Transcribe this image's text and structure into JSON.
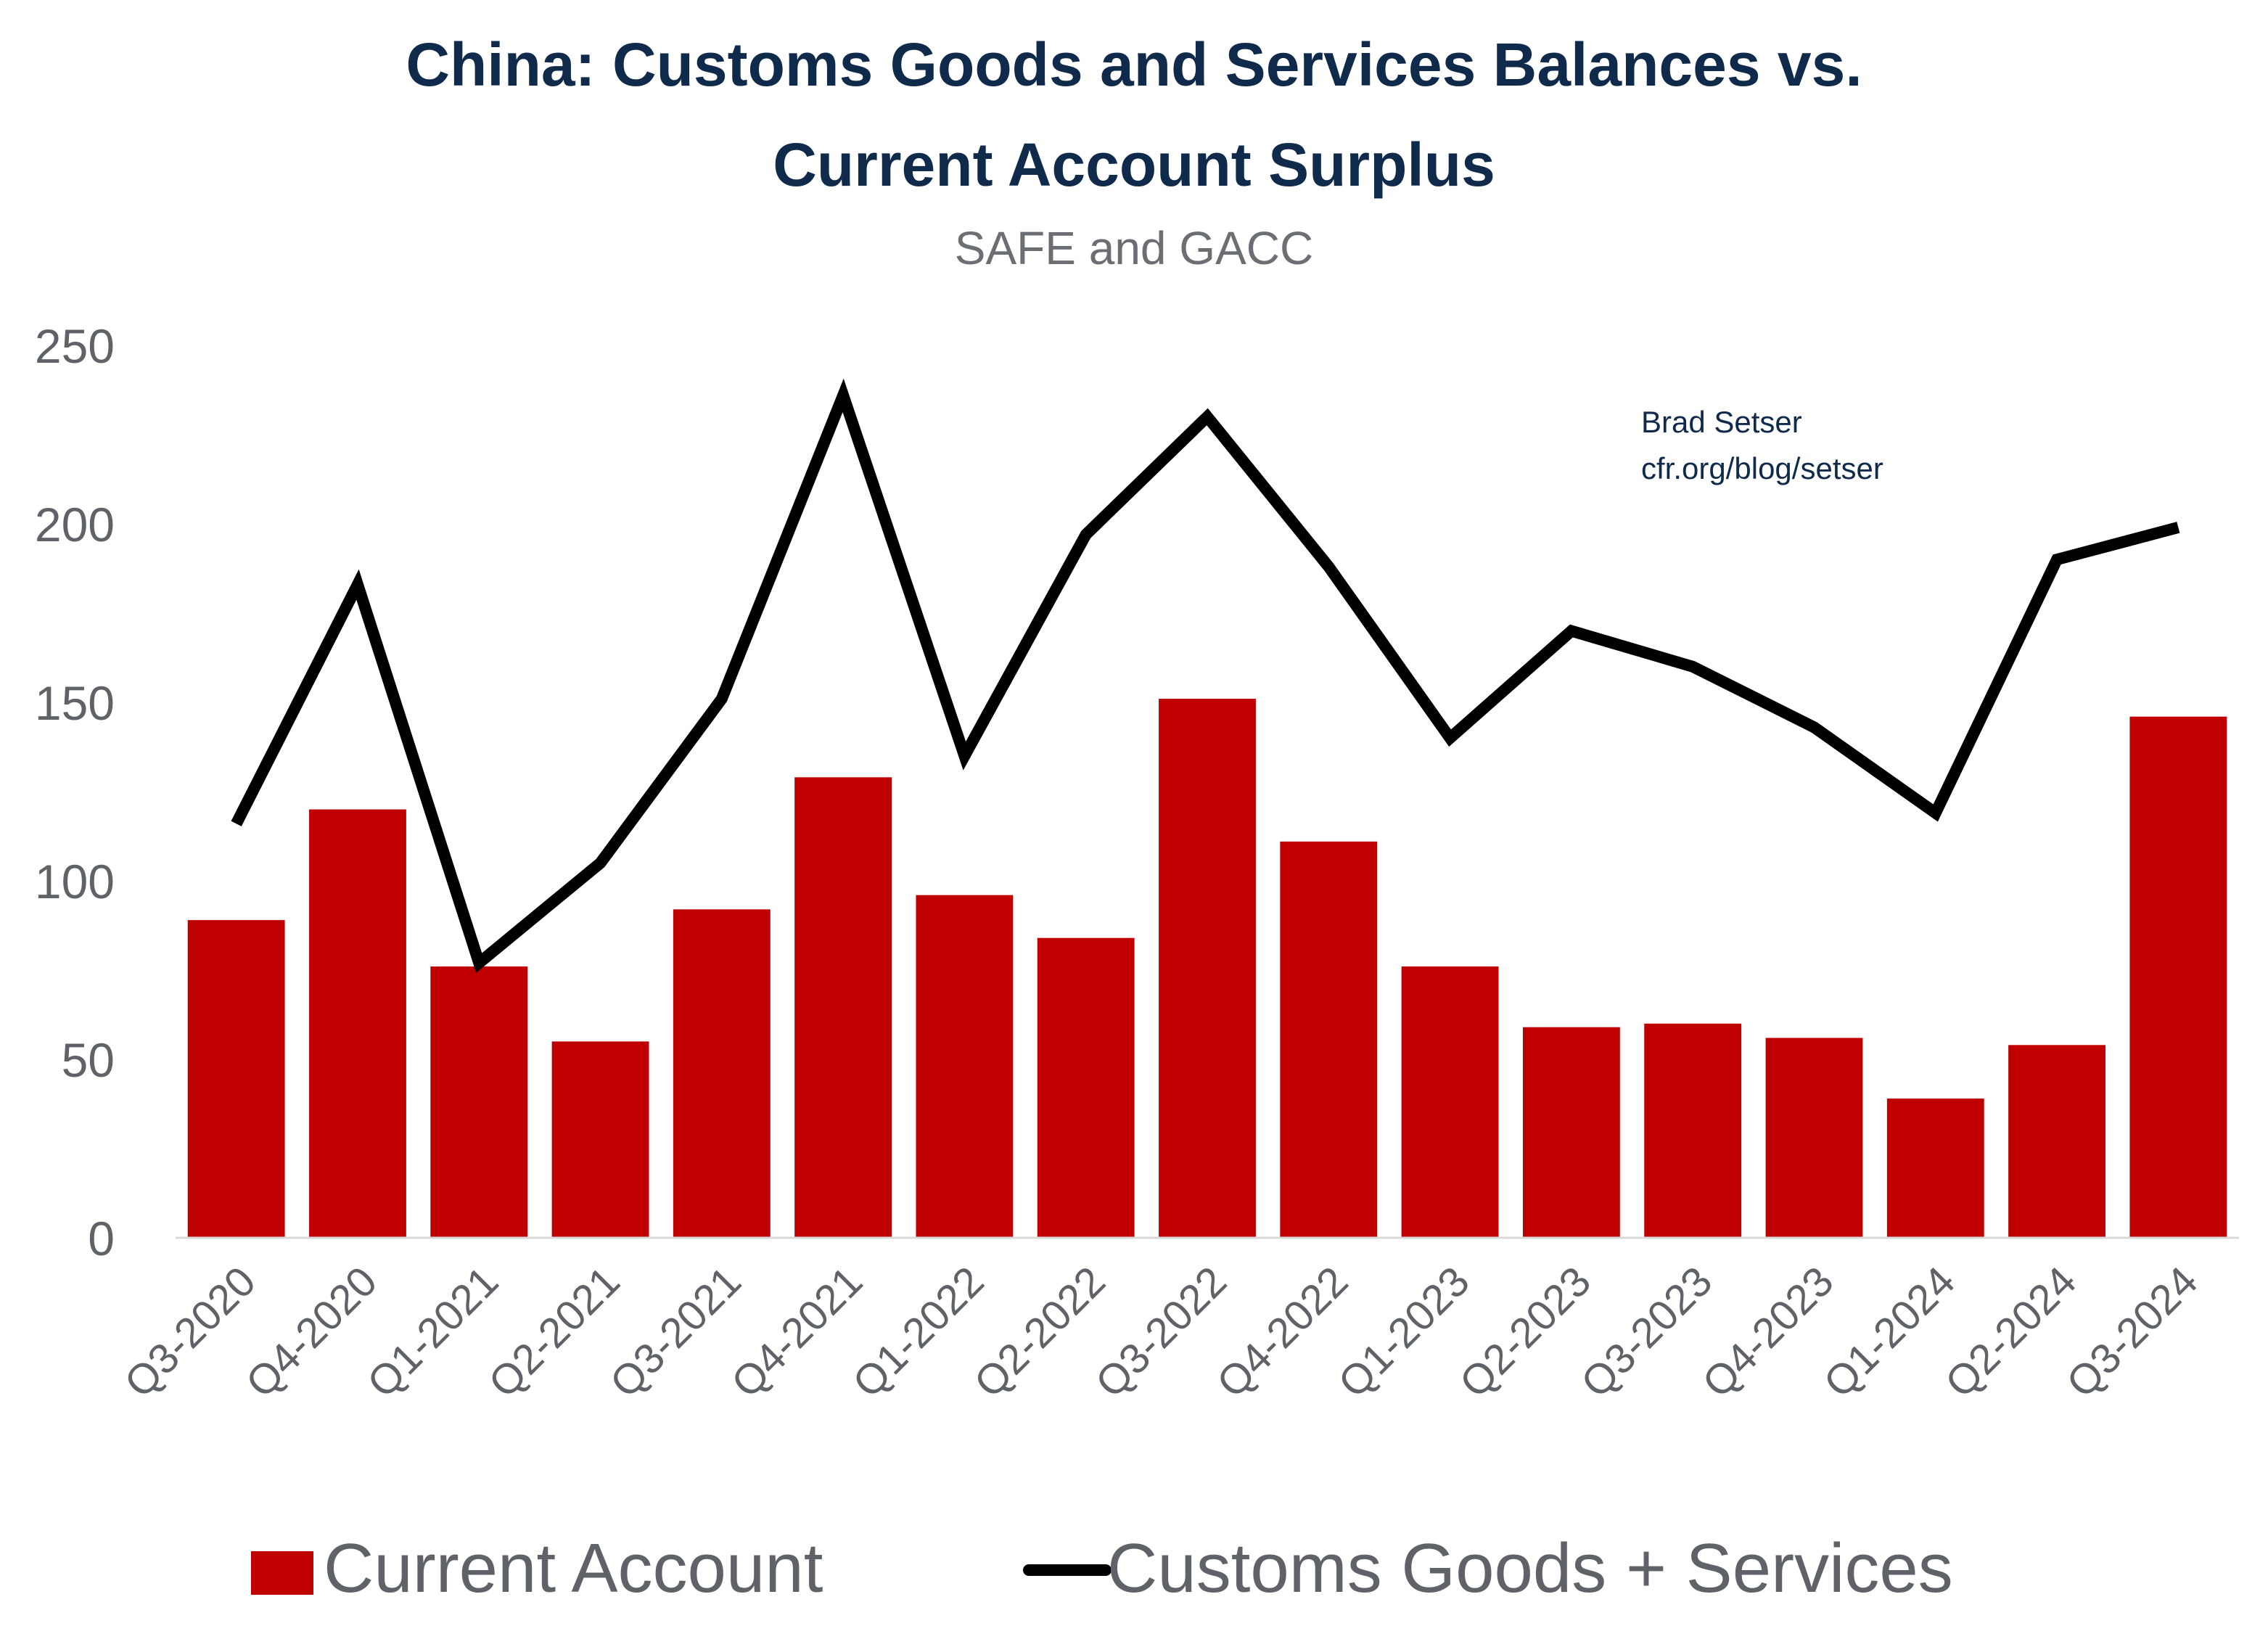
{
  "title_line1": "China: Customs Goods and Services Balances vs.",
  "title_line2": "Current Account Surplus",
  "subtitle": "SAFE and GACC",
  "note_line1": "Brad Setser",
  "note_line2": "cfr.org/blog/setser",
  "colors": {
    "bar": "#c00000",
    "line": "#000000",
    "title": "#0f2a4a",
    "ticks": "#5f6368"
  },
  "chart_data": {
    "type": "bar",
    "categories": [
      "Q3-2020",
      "Q4-2020",
      "Q1-2021",
      "Q2-2021",
      "Q3-2021",
      "Q4-2021",
      "Q1-2022",
      "Q2-2022",
      "Q3-2022",
      "Q4-2022",
      "Q1-2023",
      "Q2-2023",
      "Q3-2023",
      "Q4-2023",
      "Q1-2024",
      "Q2-2024",
      "Q3-2024"
    ],
    "ylim": [
      0,
      250
    ],
    "yticks": [
      0,
      50,
      100,
      150,
      200,
      250
    ],
    "grid": false,
    "legend_position": "bottom",
    "series": [
      {
        "name": "Current Account",
        "type": "bar",
        "color": "#c00000",
        "values": [
          89,
          120,
          76,
          55,
          92,
          129,
          96,
          84,
          151,
          111,
          76,
          59,
          60,
          56,
          39,
          54,
          146
        ]
      },
      {
        "name": "Customs Goods + Services",
        "type": "line",
        "color": "#000000",
        "values": [
          116,
          183,
          77,
          105,
          151,
          236,
          135,
          197,
          230,
          188,
          140,
          170,
          160,
          143,
          119,
          190,
          199
        ]
      }
    ]
  }
}
